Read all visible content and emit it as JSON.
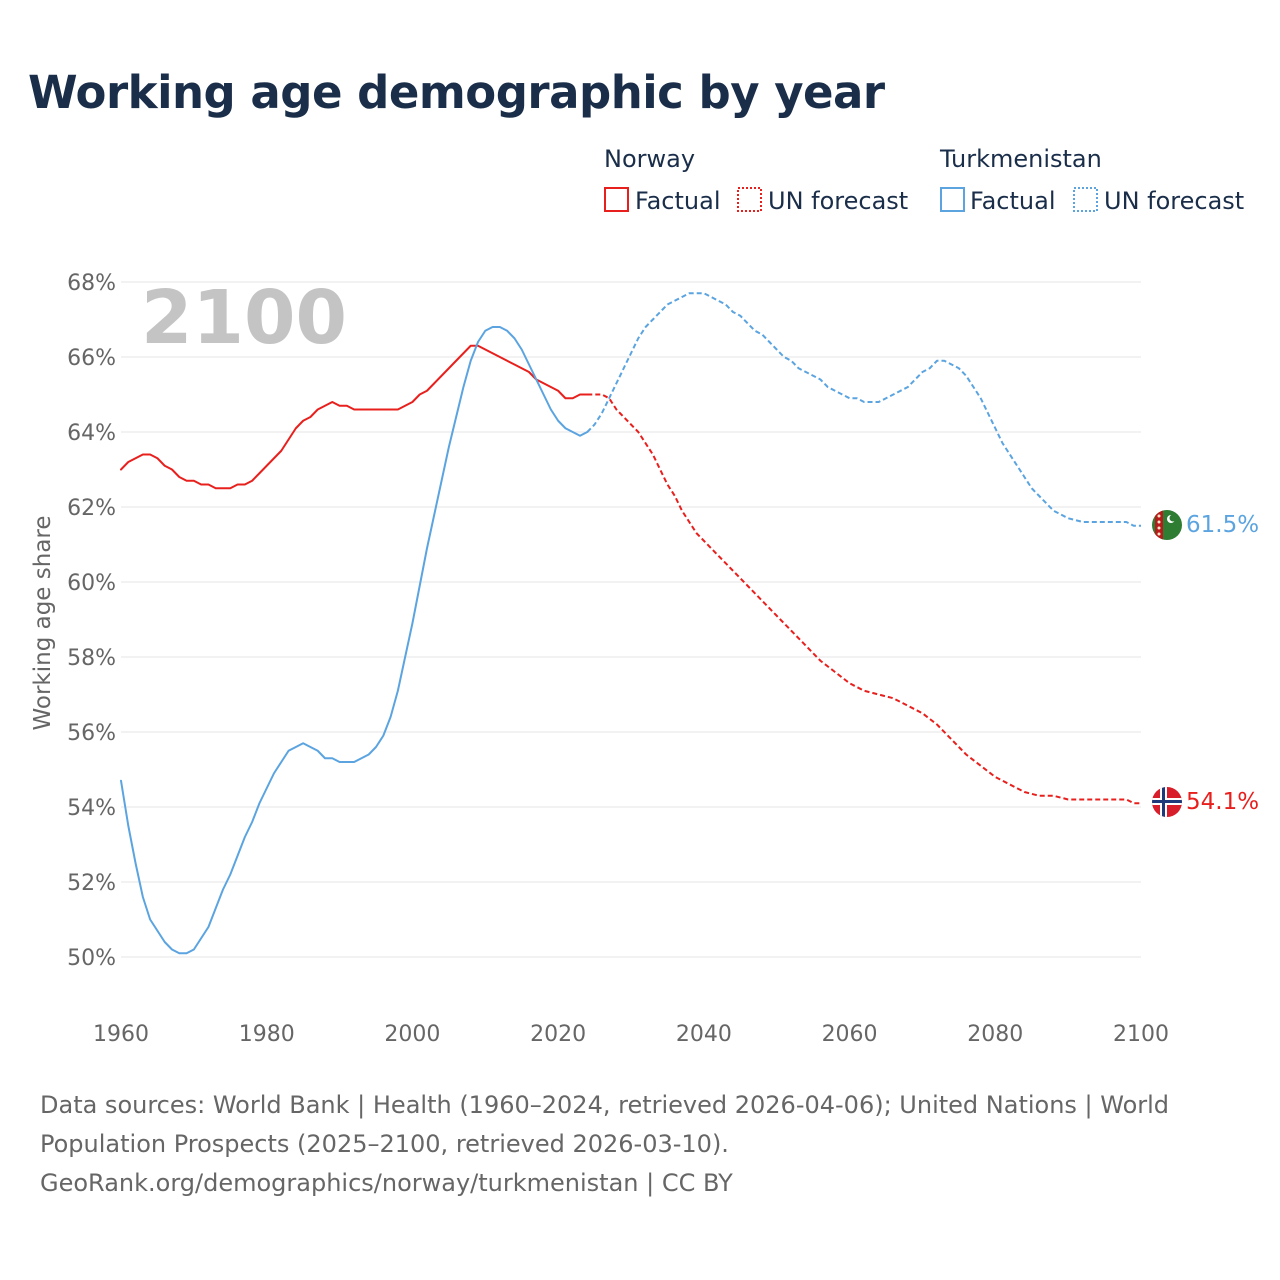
{
  "title": "Working age demographic by year",
  "footer": {
    "line1": "Data sources: World Bank | Health (1960–2024, retrieved 2026-04-06); United Nations | World",
    "line2": "Population Prospects (2025–2100, retrieved 2026-03-10).",
    "line3": "GeoRank.org/demographics/norway/turkmenistan | CC BY"
  },
  "colors": {
    "norway": "#e8201d",
    "turkmenistan": "#5ba4e0",
    "title": "#1a2e4a",
    "grid": "#e6e6e6",
    "year_watermark": "#c4c4c4"
  },
  "chart_data": {
    "type": "line",
    "ylabel": "Working age share",
    "xlim": [
      1960,
      2100
    ],
    "ylim": [
      50,
      68
    ],
    "x_ticks": [
      1960,
      1980,
      2000,
      2020,
      2040,
      2060,
      2080,
      2100
    ],
    "x_tick_labels": [
      "1960",
      "1980",
      "2000",
      "2020",
      "2040",
      "2060",
      "2080",
      "2100"
    ],
    "y_ticks": [
      50,
      52,
      54,
      56,
      58,
      60,
      62,
      64,
      66,
      68
    ],
    "y_tick_labels": [
      "50%",
      "52%",
      "54%",
      "56%",
      "58%",
      "60%",
      "62%",
      "64%",
      "66%",
      "68%"
    ],
    "year_label": "2100",
    "factual_last_year": 2024,
    "legend": {
      "groups": [
        {
          "name": "Norway",
          "factual": "Factual",
          "forecast": "UN forecast",
          "color_key": "norway"
        },
        {
          "name": "Turkmenistan",
          "factual": "Factual",
          "forecast": "UN forecast",
          "color_key": "turkmenistan"
        }
      ]
    },
    "series": [
      {
        "name": "Norway",
        "color_key": "norway",
        "end_label": "54.1%",
        "flag_icon": "norway-flag-icon",
        "points": [
          [
            1960,
            63.0
          ],
          [
            1961,
            63.2
          ],
          [
            1962,
            63.3
          ],
          [
            1963,
            63.4
          ],
          [
            1964,
            63.4
          ],
          [
            1965,
            63.3
          ],
          [
            1966,
            63.1
          ],
          [
            1967,
            63.0
          ],
          [
            1968,
            62.8
          ],
          [
            1969,
            62.7
          ],
          [
            1970,
            62.7
          ],
          [
            1971,
            62.6
          ],
          [
            1972,
            62.6
          ],
          [
            1973,
            62.5
          ],
          [
            1974,
            62.5
          ],
          [
            1975,
            62.5
          ],
          [
            1976,
            62.6
          ],
          [
            1977,
            62.6
          ],
          [
            1978,
            62.7
          ],
          [
            1979,
            62.9
          ],
          [
            1980,
            63.1
          ],
          [
            1981,
            63.3
          ],
          [
            1982,
            63.5
          ],
          [
            1983,
            63.8
          ],
          [
            1984,
            64.1
          ],
          [
            1985,
            64.3
          ],
          [
            1986,
            64.4
          ],
          [
            1987,
            64.6
          ],
          [
            1988,
            64.7
          ],
          [
            1989,
            64.8
          ],
          [
            1990,
            64.7
          ],
          [
            1991,
            64.7
          ],
          [
            1992,
            64.6
          ],
          [
            1993,
            64.6
          ],
          [
            1994,
            64.6
          ],
          [
            1995,
            64.6
          ],
          [
            1996,
            64.6
          ],
          [
            1997,
            64.6
          ],
          [
            1998,
            64.6
          ],
          [
            1999,
            64.7
          ],
          [
            2000,
            64.8
          ],
          [
            2001,
            65.0
          ],
          [
            2002,
            65.1
          ],
          [
            2003,
            65.3
          ],
          [
            2004,
            65.5
          ],
          [
            2005,
            65.7
          ],
          [
            2006,
            65.9
          ],
          [
            2007,
            66.1
          ],
          [
            2008,
            66.3
          ],
          [
            2009,
            66.3
          ],
          [
            2010,
            66.2
          ],
          [
            2011,
            66.1
          ],
          [
            2012,
            66.0
          ],
          [
            2013,
            65.9
          ],
          [
            2014,
            65.8
          ],
          [
            2015,
            65.7
          ],
          [
            2016,
            65.6
          ],
          [
            2017,
            65.4
          ],
          [
            2018,
            65.3
          ],
          [
            2019,
            65.2
          ],
          [
            2020,
            65.1
          ],
          [
            2021,
            64.9
          ],
          [
            2022,
            64.9
          ],
          [
            2023,
            65.0
          ],
          [
            2024,
            65.0
          ],
          [
            2025,
            65.0
          ],
          [
            2026,
            65.0
          ],
          [
            2027,
            64.9
          ],
          [
            2028,
            64.6
          ],
          [
            2029,
            64.4
          ],
          [
            2030,
            64.2
          ],
          [
            2031,
            64.0
          ],
          [
            2032,
            63.7
          ],
          [
            2033,
            63.4
          ],
          [
            2034,
            63.0
          ],
          [
            2035,
            62.6
          ],
          [
            2036,
            62.3
          ],
          [
            2037,
            61.9
          ],
          [
            2038,
            61.6
          ],
          [
            2039,
            61.3
          ],
          [
            2040,
            61.1
          ],
          [
            2042,
            60.7
          ],
          [
            2044,
            60.3
          ],
          [
            2046,
            59.9
          ],
          [
            2048,
            59.5
          ],
          [
            2050,
            59.1
          ],
          [
            2052,
            58.7
          ],
          [
            2054,
            58.3
          ],
          [
            2056,
            57.9
          ],
          [
            2058,
            57.6
          ],
          [
            2060,
            57.3
          ],
          [
            2062,
            57.1
          ],
          [
            2064,
            57.0
          ],
          [
            2066,
            56.9
          ],
          [
            2068,
            56.7
          ],
          [
            2070,
            56.5
          ],
          [
            2072,
            56.2
          ],
          [
            2074,
            55.8
          ],
          [
            2076,
            55.4
          ],
          [
            2078,
            55.1
          ],
          [
            2080,
            54.8
          ],
          [
            2082,
            54.6
          ],
          [
            2084,
            54.4
          ],
          [
            2086,
            54.3
          ],
          [
            2088,
            54.3
          ],
          [
            2090,
            54.2
          ],
          [
            2092,
            54.2
          ],
          [
            2094,
            54.2
          ],
          [
            2096,
            54.2
          ],
          [
            2098,
            54.2
          ],
          [
            2099,
            54.1
          ],
          [
            2100,
            54.1
          ]
        ]
      },
      {
        "name": "Turkmenistan",
        "color_key": "turkmenistan",
        "end_label": "61.5%",
        "flag_icon": "turkmenistan-flag-icon",
        "points": [
          [
            1960,
            54.7
          ],
          [
            1961,
            53.5
          ],
          [
            1962,
            52.5
          ],
          [
            1963,
            51.6
          ],
          [
            1964,
            51.0
          ],
          [
            1965,
            50.7
          ],
          [
            1966,
            50.4
          ],
          [
            1967,
            50.2
          ],
          [
            1968,
            50.1
          ],
          [
            1969,
            50.1
          ],
          [
            1970,
            50.2
          ],
          [
            1971,
            50.5
          ],
          [
            1972,
            50.8
          ],
          [
            1973,
            51.3
          ],
          [
            1974,
            51.8
          ],
          [
            1975,
            52.2
          ],
          [
            1976,
            52.7
          ],
          [
            1977,
            53.2
          ],
          [
            1978,
            53.6
          ],
          [
            1979,
            54.1
          ],
          [
            1980,
            54.5
          ],
          [
            1981,
            54.9
          ],
          [
            1982,
            55.2
          ],
          [
            1983,
            55.5
          ],
          [
            1984,
            55.6
          ],
          [
            1985,
            55.7
          ],
          [
            1986,
            55.6
          ],
          [
            1987,
            55.5
          ],
          [
            1988,
            55.3
          ],
          [
            1989,
            55.3
          ],
          [
            1990,
            55.2
          ],
          [
            1991,
            55.2
          ],
          [
            1992,
            55.2
          ],
          [
            1993,
            55.3
          ],
          [
            1994,
            55.4
          ],
          [
            1995,
            55.6
          ],
          [
            1996,
            55.9
          ],
          [
            1997,
            56.4
          ],
          [
            1998,
            57.1
          ],
          [
            1999,
            58.0
          ],
          [
            2000,
            58.9
          ],
          [
            2001,
            59.9
          ],
          [
            2002,
            60.9
          ],
          [
            2003,
            61.8
          ],
          [
            2004,
            62.7
          ],
          [
            2005,
            63.6
          ],
          [
            2006,
            64.4
          ],
          [
            2007,
            65.2
          ],
          [
            2008,
            65.9
          ],
          [
            2009,
            66.4
          ],
          [
            2010,
            66.7
          ],
          [
            2011,
            66.8
          ],
          [
            2012,
            66.8
          ],
          [
            2013,
            66.7
          ],
          [
            2014,
            66.5
          ],
          [
            2015,
            66.2
          ],
          [
            2016,
            65.8
          ],
          [
            2017,
            65.4
          ],
          [
            2018,
            65.0
          ],
          [
            2019,
            64.6
          ],
          [
            2020,
            64.3
          ],
          [
            2021,
            64.1
          ],
          [
            2022,
            64.0
          ],
          [
            2023,
            63.9
          ],
          [
            2024,
            64.0
          ],
          [
            2025,
            64.2
          ],
          [
            2026,
            64.5
          ],
          [
            2027,
            64.9
          ],
          [
            2028,
            65.3
          ],
          [
            2029,
            65.7
          ],
          [
            2030,
            66.1
          ],
          [
            2031,
            66.5
          ],
          [
            2032,
            66.8
          ],
          [
            2033,
            67.0
          ],
          [
            2034,
            67.2
          ],
          [
            2035,
            67.4
          ],
          [
            2036,
            67.5
          ],
          [
            2037,
            67.6
          ],
          [
            2038,
            67.7
          ],
          [
            2039,
            67.7
          ],
          [
            2040,
            67.7
          ],
          [
            2041,
            67.6
          ],
          [
            2042,
            67.5
          ],
          [
            2043,
            67.4
          ],
          [
            2044,
            67.2
          ],
          [
            2045,
            67.1
          ],
          [
            2046,
            66.9
          ],
          [
            2047,
            66.7
          ],
          [
            2048,
            66.6
          ],
          [
            2049,
            66.4
          ],
          [
            2050,
            66.2
          ],
          [
            2051,
            66.0
          ],
          [
            2052,
            65.9
          ],
          [
            2053,
            65.7
          ],
          [
            2054,
            65.6
          ],
          [
            2055,
            65.5
          ],
          [
            2056,
            65.4
          ],
          [
            2057,
            65.2
          ],
          [
            2058,
            65.1
          ],
          [
            2059,
            65.0
          ],
          [
            2060,
            64.9
          ],
          [
            2061,
            64.9
          ],
          [
            2062,
            64.8
          ],
          [
            2063,
            64.8
          ],
          [
            2064,
            64.8
          ],
          [
            2065,
            64.9
          ],
          [
            2066,
            65.0
          ],
          [
            2067,
            65.1
          ],
          [
            2068,
            65.2
          ],
          [
            2069,
            65.4
          ],
          [
            2070,
            65.6
          ],
          [
            2071,
            65.7
          ],
          [
            2072,
            65.9
          ],
          [
            2073,
            65.9
          ],
          [
            2074,
            65.8
          ],
          [
            2075,
            65.7
          ],
          [
            2076,
            65.5
          ],
          [
            2077,
            65.2
          ],
          [
            2078,
            64.9
          ],
          [
            2079,
            64.5
          ],
          [
            2080,
            64.1
          ],
          [
            2081,
            63.7
          ],
          [
            2082,
            63.4
          ],
          [
            2083,
            63.1
          ],
          [
            2084,
            62.8
          ],
          [
            2085,
            62.5
          ],
          [
            2086,
            62.3
          ],
          [
            2087,
            62.1
          ],
          [
            2088,
            61.9
          ],
          [
            2089,
            61.8
          ],
          [
            2090,
            61.7
          ],
          [
            2092,
            61.6
          ],
          [
            2094,
            61.6
          ],
          [
            2096,
            61.6
          ],
          [
            2098,
            61.6
          ],
          [
            2099,
            61.5
          ],
          [
            2100,
            61.5
          ]
        ]
      }
    ]
  }
}
